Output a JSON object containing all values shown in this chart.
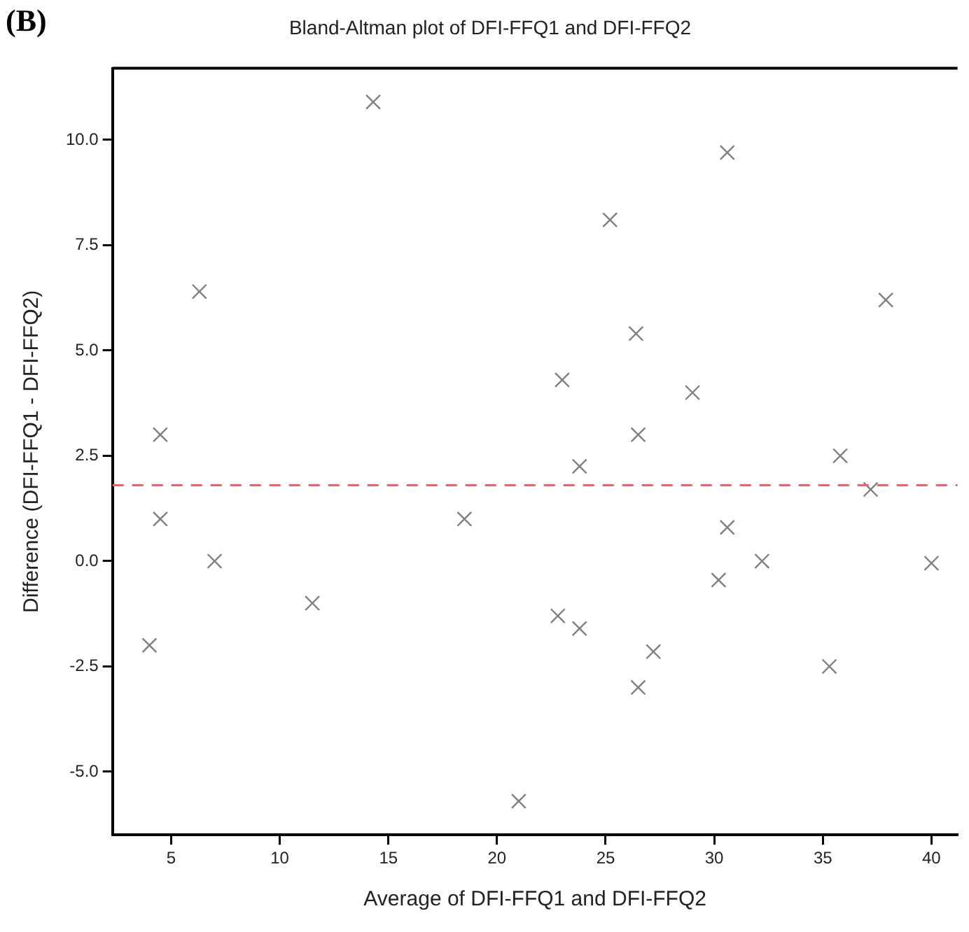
{
  "chart_data": {
    "type": "scatter",
    "title": "Bland-Altman plot of DFI-FFQ1 and DFI-FFQ2",
    "xlabel": "Average of DFI-FFQ1 and DFI-FFQ2",
    "ylabel": "Difference (DFI-FFQ1 - DFI-FFQ2)",
    "annotations": [
      "(B)"
    ],
    "x": [
      4.0,
      4.5,
      4.5,
      7.0,
      11.5,
      6.3,
      14.3,
      18.5,
      21.0,
      22.8,
      23.0,
      23.8,
      23.8,
      25.2,
      26.4,
      26.5,
      26.5,
      27.2,
      29.0,
      30.2,
      30.6,
      30.6,
      32.2,
      35.3,
      35.8,
      37.2,
      37.9,
      40.0
    ],
    "series": [
      {
        "color": "#808080",
        "values": [
          -2.0,
          3.0,
          1.0,
          0.0,
          -1.0,
          6.4,
          10.9,
          1.0,
          -5.7,
          -1.3,
          4.3,
          -1.6,
          2.25,
          8.1,
          5.4,
          3.0,
          -3.0,
          -2.15,
          4.0,
          -0.45,
          9.7,
          0.8,
          0.0,
          -2.5,
          2.5,
          1.7,
          6.2,
          -0.05
        ]
      }
    ],
    "xlim": [
      2.3,
      41.2
    ],
    "xticks": [
      5,
      10,
      15,
      20,
      25,
      30,
      35,
      40
    ],
    "ylim": [
      -6.5,
      11.7
    ],
    "yticks": [
      {
        "value": -5,
        "label": "-5.0"
      },
      {
        "value": -2.5,
        "label": "-2.5"
      },
      {
        "value": 0,
        "label": "0.0"
      },
      {
        "value": 2.5,
        "label": "2.5"
      },
      {
        "value": 5,
        "label": "5.0"
      },
      {
        "value": 7.5,
        "label": "7.5"
      },
      {
        "value": 10,
        "label": "10.0"
      }
    ],
    "ref_lines": [
      {
        "axis": "y",
        "value": 1.8,
        "color": "#e8636b",
        "line_style": "dashed"
      }
    ],
    "grid": false,
    "legend": false,
    "marker": "cross"
  }
}
